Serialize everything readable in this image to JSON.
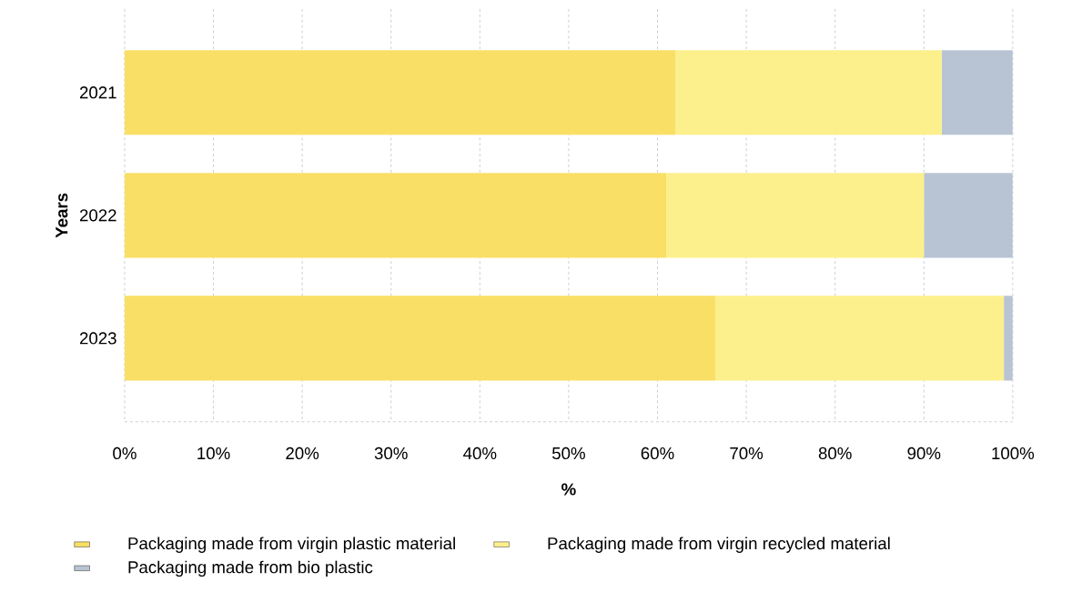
{
  "chart_data": {
    "type": "bar",
    "orientation": "horizontal",
    "stacked": true,
    "xlabel": "%",
    "ylabel": "Years",
    "categories": [
      "2021",
      "2022",
      "2023"
    ],
    "series": [
      {
        "name": "Packaging made from virgin plastic material",
        "color": "#f9df65",
        "values": [
          62,
          61,
          66.5
        ]
      },
      {
        "name": "Packaging made from virgin recycled material",
        "color": "#fcf08c",
        "values": [
          30,
          29,
          32.5
        ]
      },
      {
        "name": "Packaging made from bio plastic",
        "color": "#b8c4d4",
        "values": [
          8,
          10,
          1
        ]
      }
    ],
    "xlim": [
      0,
      100
    ],
    "xticks": [
      {
        "value": 0,
        "label": "0%"
      },
      {
        "value": 10,
        "label": "10%"
      },
      {
        "value": 20,
        "label": "20%"
      },
      {
        "value": 30,
        "label": "30%"
      },
      {
        "value": 40,
        "label": "40%"
      },
      {
        "value": 50,
        "label": "50%"
      },
      {
        "value": 60,
        "label": "60%"
      },
      {
        "value": 70,
        "label": "70%"
      },
      {
        "value": 80,
        "label": "80%"
      },
      {
        "value": 90,
        "label": "90%"
      },
      {
        "value": 100,
        "label": "100%"
      }
    ],
    "grid": "x",
    "legend": "bottom"
  }
}
